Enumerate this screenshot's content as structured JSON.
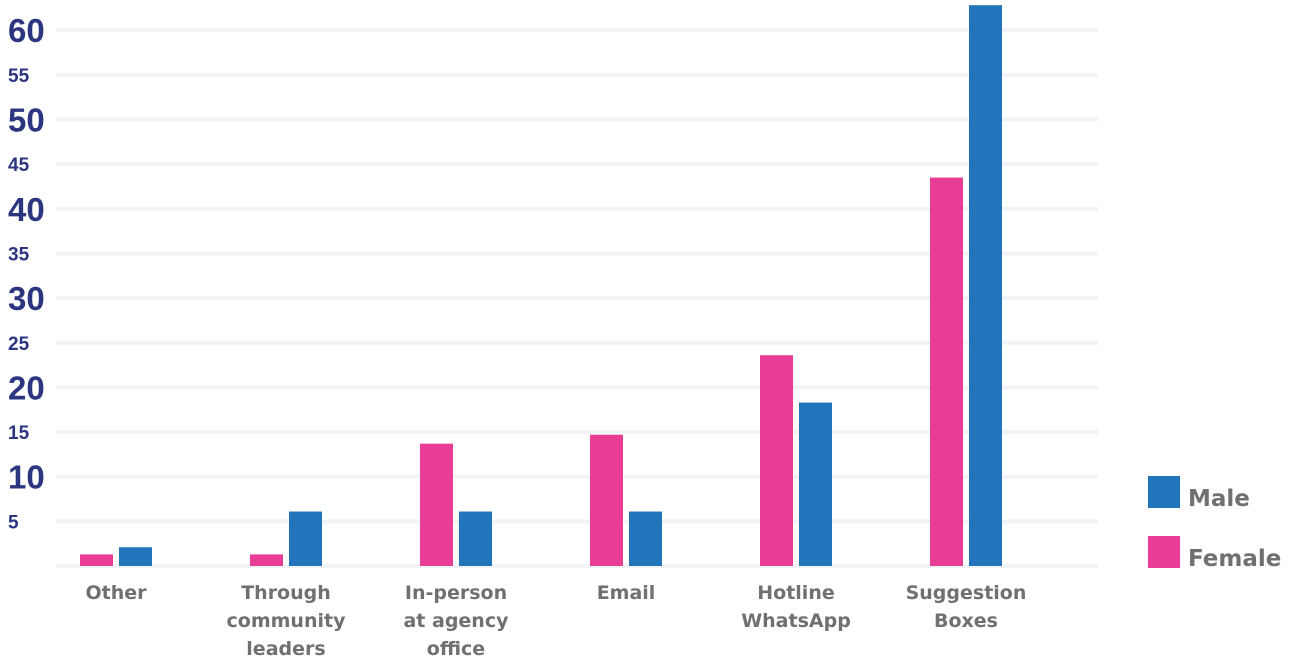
{
  "chart_data": {
    "type": "bar",
    "categories": [
      [
        "Other"
      ],
      [
        "Through",
        "community",
        "leaders"
      ],
      [
        "In-person",
        "at agency",
        "office"
      ],
      [
        "Email"
      ],
      [
        "Hotline",
        "WhatsApp"
      ],
      [
        "Suggestion",
        "Boxes"
      ]
    ],
    "series": [
      {
        "name": "Female",
        "color": "#e93c94",
        "values": [
          1.3,
          1.3,
          13.7,
          14.7,
          23.6,
          43.5
        ]
      },
      {
        "name": "Male",
        "color": "#2274bb",
        "values": [
          2.1,
          6.1,
          6.1,
          6.1,
          18.3,
          62.8
        ]
      }
    ],
    "yticks": [
      "5",
      "10",
      "15",
      "20",
      "25",
      "30",
      "35",
      "40",
      "45",
      "50",
      "55",
      "60"
    ],
    "ylim": [
      0,
      60
    ],
    "grid": true,
    "legend": [
      {
        "label": "Male",
        "color": "#2274bb"
      },
      {
        "label": "Female",
        "color": "#e93c94"
      }
    ],
    "legend_position": "right"
  }
}
